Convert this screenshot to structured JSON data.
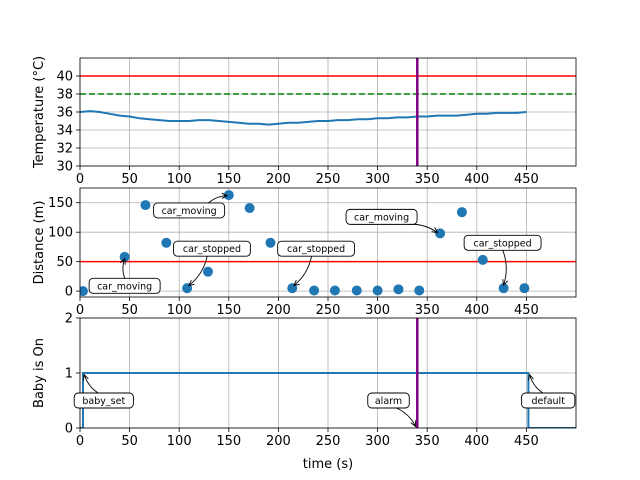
{
  "chart_data": [
    {
      "type": "line",
      "xlim": [
        0,
        500
      ],
      "ylim": [
        30,
        42
      ],
      "ylabel": "Temperature (°C)",
      "xticks": [
        0,
        50,
        100,
        150,
        200,
        250,
        300,
        350,
        400,
        450
      ],
      "yticks": [
        30,
        32,
        34,
        36,
        38,
        40
      ],
      "grid": true,
      "series": [
        {
          "color": "#1f77b4",
          "x": [
            0,
            10,
            20,
            30,
            40,
            50,
            60,
            70,
            80,
            90,
            100,
            110,
            120,
            130,
            140,
            150,
            160,
            170,
            180,
            190,
            200,
            210,
            220,
            230,
            240,
            250,
            260,
            270,
            280,
            290,
            300,
            310,
            320,
            330,
            340,
            350,
            360,
            370,
            380,
            390,
            400,
            410,
            420,
            430,
            440,
            450
          ],
          "y": [
            36.0,
            36.1,
            36.0,
            35.8,
            35.6,
            35.5,
            35.3,
            35.2,
            35.1,
            35.0,
            35.0,
            35.0,
            35.1,
            35.1,
            35.0,
            34.9,
            34.8,
            34.7,
            34.7,
            34.6,
            34.7,
            34.8,
            34.8,
            34.9,
            35.0,
            35.0,
            35.1,
            35.1,
            35.2,
            35.2,
            35.3,
            35.3,
            35.4,
            35.4,
            35.5,
            35.5,
            35.6,
            35.6,
            35.6,
            35.7,
            35.8,
            35.8,
            35.9,
            35.9,
            35.9,
            36.0
          ]
        }
      ],
      "hlines": [
        {
          "y": 40,
          "color": "#ff0000",
          "style": "solid"
        },
        {
          "y": 38,
          "color": "#008000",
          "style": "dashed"
        }
      ],
      "vline": {
        "x": 340,
        "color": "#800080"
      }
    },
    {
      "type": "scatter",
      "xlim": [
        0,
        500
      ],
      "ylim": [
        -10,
        175
      ],
      "ylabel": "Distance (m)",
      "xticks": [
        0,
        50,
        100,
        150,
        200,
        250,
        300,
        350,
        400,
        450
      ],
      "yticks": [
        0,
        50,
        100,
        150
      ],
      "grid": true,
      "color": "#1f77b4",
      "points": [
        {
          "x": 3,
          "y": 0
        },
        {
          "x": 45,
          "y": 58
        },
        {
          "x": 66,
          "y": 146
        },
        {
          "x": 87,
          "y": 82
        },
        {
          "x": 108,
          "y": 5
        },
        {
          "x": 129,
          "y": 33
        },
        {
          "x": 150,
          "y": 163
        },
        {
          "x": 171,
          "y": 141
        },
        {
          "x": 192,
          "y": 82
        },
        {
          "x": 214,
          "y": 5
        },
        {
          "x": 236,
          "y": 1
        },
        {
          "x": 257,
          "y": 1
        },
        {
          "x": 279,
          "y": 1
        },
        {
          "x": 300,
          "y": 1
        },
        {
          "x": 321,
          "y": 3
        },
        {
          "x": 342,
          "y": 1
        },
        {
          "x": 363,
          "y": 98
        },
        {
          "x": 385,
          "y": 134
        },
        {
          "x": 406,
          "y": 53
        },
        {
          "x": 427,
          "y": 5
        },
        {
          "x": 448,
          "y": 5
        }
      ],
      "hline": {
        "y": 50,
        "color": "#ff0000"
      },
      "annotations": [
        {
          "text": "car_moving",
          "x": 45,
          "y": 58,
          "tx": 45,
          "ty": 9
        },
        {
          "text": "car_moving",
          "x": 150,
          "y": 163,
          "tx": 110,
          "ty": 137
        },
        {
          "text": "car_stopped",
          "x": 108,
          "y": 5,
          "tx": 133,
          "ty": 72
        },
        {
          "text": "car_stopped",
          "x": 214,
          "y": 5,
          "tx": 238,
          "ty": 72
        },
        {
          "text": "car_moving",
          "x": 363,
          "y": 98,
          "tx": 304,
          "ty": 126
        },
        {
          "text": "car_stopped",
          "x": 427,
          "y": 5,
          "tx": 426,
          "ty": 82
        }
      ]
    },
    {
      "type": "line",
      "xlim": [
        0,
        500
      ],
      "ylim": [
        0,
        2
      ],
      "ylabel": "Baby is On",
      "xlabel": "time (s)",
      "xticks": [
        0,
        50,
        100,
        150,
        200,
        250,
        300,
        350,
        400,
        450
      ],
      "yticks": [
        0,
        1,
        2
      ],
      "grid": true,
      "series": [
        {
          "color": "#1f77b4",
          "x": [
            0,
            3,
            3,
            452,
            452,
            500
          ],
          "y": [
            0,
            0,
            1,
            1,
            0,
            0
          ]
        }
      ],
      "vline": {
        "x": 340,
        "color": "#800080"
      },
      "annotations": [
        {
          "text": "baby_set",
          "x": 3,
          "y": 1,
          "tx": 24,
          "ty": 0.5
        },
        {
          "text": "alarm",
          "x": 340,
          "y": 0,
          "tx": 311,
          "ty": 0.5
        },
        {
          "text": "default",
          "x": 452,
          "y": 1,
          "tx": 472,
          "ty": 0.5
        }
      ]
    }
  ]
}
